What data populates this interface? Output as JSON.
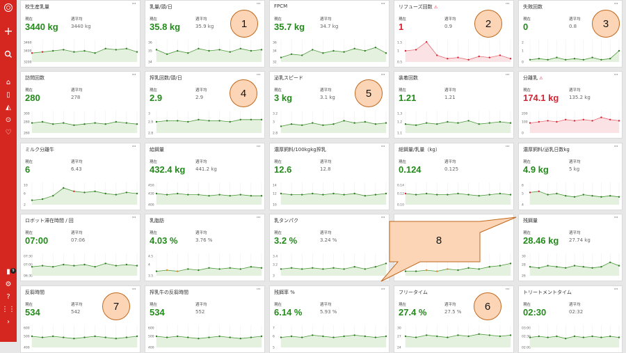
{
  "sidebar": {
    "top_logo": "logo-icon",
    "add_icon": "+",
    "items": [
      {
        "name": "home-icon",
        "glyph": "⌂"
      },
      {
        "name": "robot-icon",
        "glyph": "▯"
      },
      {
        "name": "barn-icon",
        "glyph": "◭"
      },
      {
        "name": "cow-icon",
        "glyph": "⊙"
      },
      {
        "name": "health-icon",
        "glyph": "♡"
      }
    ],
    "bottom": [
      {
        "name": "device-icon",
        "glyph": "▮",
        "badge": "9"
      },
      {
        "name": "settings-icon",
        "glyph": "⚙"
      },
      {
        "name": "help-icon",
        "glyph": "?"
      },
      {
        "name": "apps-icon",
        "glyph": "⋮⋮"
      },
      {
        "name": "expand-icon",
        "glyph": "›"
      }
    ]
  },
  "labels": {
    "current": "現在",
    "average": "週平均",
    "menu": "···"
  },
  "cards": [
    {
      "title": "校生産乳量",
      "current": "3440 kg",
      "avg": "3440 kg",
      "ticks": [
        "3460",
        "3400",
        "3200"
      ],
      "color": "green",
      "values": [
        0.4,
        0.45,
        0.5,
        0.55,
        0.45,
        0.5,
        0.4,
        0.6,
        0.55,
        0.6,
        0.45
      ],
      "red": [
        0,
        1
      ]
    },
    {
      "title": "乳量/頭/日",
      "current": "35.8 kg",
      "avg": "35.9 kg",
      "ticks": [
        "36",
        "35",
        "34"
      ],
      "color": "green",
      "values": [
        0.55,
        0.35,
        0.5,
        0.4,
        0.6,
        0.5,
        0.55,
        0.45,
        0.6,
        0.5,
        0.55
      ]
    },
    {
      "title": "FPCM",
      "current": "35.7 kg",
      "avg": "34.7 kg",
      "ticks": [
        "36",
        "34",
        "32"
      ],
      "color": "green",
      "values": [
        0.2,
        0.35,
        0.3,
        0.55,
        0.4,
        0.5,
        0.45,
        0.6,
        0.5,
        0.65,
        0.4
      ]
    },
    {
      "title": "リフューズ回数",
      "warn": true,
      "current": "1",
      "avg": "0.9",
      "ticks": [
        "1.5",
        "1",
        "0.5"
      ],
      "color": "red",
      "values": [
        0.5,
        0.55,
        0.9,
        0.3,
        0.15,
        0.2,
        0.1,
        0.25,
        0.2,
        0.3,
        0.15
      ]
    },
    {
      "title": "失敗回数",
      "current": "0",
      "avg": "0.8",
      "ticks": [
        "2",
        "1",
        "0"
      ],
      "color": "green",
      "values": [
        0.1,
        0.15,
        0.1,
        0.2,
        0.1,
        0.15,
        0.1,
        0.2,
        0.1,
        0.15,
        0.5
      ]
    },
    {
      "title": "訪問回数",
      "current": "280",
      "avg": "278",
      "ticks": [
        "300",
        "280",
        "260"
      ],
      "color": "green",
      "values": [
        0.45,
        0.5,
        0.4,
        0.45,
        0.35,
        0.4,
        0.45,
        0.4,
        0.5,
        0.45,
        0.4
      ]
    },
    {
      "title": "搾乳回数/頭/日",
      "current": "2.9",
      "avg": "2.9",
      "ticks": [
        "3",
        "2.9",
        "2.8"
      ],
      "color": "green",
      "values": [
        0.5,
        0.55,
        0.55,
        0.5,
        0.6,
        0.55,
        0.55,
        0.5,
        0.6,
        0.6,
        0.6
      ]
    },
    {
      "title": "泌乳スピード",
      "current": "3 kg",
      "avg": "3.1 kg",
      "ticks": [
        "3.2",
        "3",
        "2.8"
      ],
      "color": "green",
      "values": [
        0.3,
        0.4,
        0.35,
        0.45,
        0.35,
        0.4,
        0.55,
        0.45,
        0.5,
        0.4,
        0.45
      ]
    },
    {
      "title": "装着回数",
      "current": "1.21",
      "avg": "1.21",
      "ticks": [
        "1.3",
        "1.2",
        "1.1"
      ],
      "color": "green",
      "values": [
        0.4,
        0.35,
        0.45,
        0.4,
        0.5,
        0.45,
        0.55,
        0.4,
        0.45,
        0.5,
        0.45
      ]
    },
    {
      "title": "分離乳",
      "warn": true,
      "current": "174.1 kg",
      "avg": "135.2 kg",
      "ticks": [
        "200",
        "100",
        "0"
      ],
      "color": "red",
      "values": [
        0.45,
        0.5,
        0.55,
        0.5,
        0.6,
        0.55,
        0.6,
        0.55,
        0.7,
        0.6,
        0.55
      ]
    },
    {
      "title": "ミルク分離牛",
      "current": "6",
      "avg": "6.43",
      "ticks": [
        "10",
        "6",
        "2"
      ],
      "color": "green",
      "values": [
        0.2,
        0.25,
        0.4,
        0.75,
        0.6,
        0.55,
        0.6,
        0.5,
        0.45,
        0.55,
        0.5
      ],
      "red": [
        4
      ]
    },
    {
      "title": "給餌量",
      "current": "432.4 kg",
      "avg": "441.2 kg",
      "ticks": [
        "450",
        "430",
        "400"
      ],
      "color": "green",
      "values": [
        0.5,
        0.45,
        0.5,
        0.45,
        0.45,
        0.4,
        0.45,
        0.4,
        0.45,
        0.4,
        0.4
      ]
    },
    {
      "title": "濃厚飼料/100kgkg搾乳",
      "current": "12.6",
      "avg": "12.8",
      "ticks": [
        "14",
        "12",
        "10"
      ],
      "color": "green",
      "values": [
        0.5,
        0.45,
        0.45,
        0.5,
        0.45,
        0.5,
        0.45,
        0.5,
        0.4,
        0.45,
        0.5
      ]
    },
    {
      "title": "総餌量/乳量（kg）",
      "current": "0.124",
      "avg": "0.125",
      "ticks": [
        "0.14",
        "0.12",
        "0.10"
      ],
      "color": "green",
      "values": [
        0.5,
        0.45,
        0.5,
        0.45,
        0.45,
        0.5,
        0.45,
        0.4,
        0.45,
        0.5,
        0.45
      ],
      "red": [
        0
      ]
    },
    {
      "title": "濃厚飼料/泌乳日数kg",
      "current": "4.9 kg",
      "avg": "5 kg",
      "ticks": [
        "6",
        "5",
        "4"
      ],
      "color": "green",
      "values": [
        0.55,
        0.6,
        0.45,
        0.5,
        0.4,
        0.35,
        0.45,
        0.4,
        0.35,
        0.4,
        0.35
      ],
      "red": [
        0,
        1
      ]
    },
    {
      "title": "ロボット滞在時間 / 回",
      "current": "07:00",
      "avg": "07:06",
      "ticks": [
        "07:30",
        "07:00",
        "06:30"
      ],
      "color": "green",
      "values": [
        0.4,
        0.45,
        0.4,
        0.5,
        0.45,
        0.5,
        0.4,
        0.55,
        0.45,
        0.5,
        0.45
      ]
    },
    {
      "title": "乳脂肪",
      "current": "4.03 %",
      "avg": "3.76 %",
      "ticks": [
        "4.5",
        "4",
        "3.5"
      ],
      "color": "green",
      "values": [
        0.2,
        0.25,
        0.2,
        0.3,
        0.25,
        0.35,
        0.3,
        0.35,
        0.3,
        0.4,
        0.35
      ],
      "orange": [
        1,
        2
      ]
    },
    {
      "title": "乳タンパク",
      "current": "3.2 %",
      "avg": "3.24 %",
      "ticks": [
        "3.4",
        "3.2",
        "3"
      ],
      "color": "green",
      "values": [
        0.3,
        0.35,
        0.3,
        0.35,
        0.3,
        0.35,
        0.3,
        0.4,
        0.3,
        0.4,
        0.55
      ]
    },
    {
      "title": "",
      "current": "",
      "avg": "",
      "ticks": [
        "",
        "",
        ""
      ],
      "color": "green",
      "values": [
        0.2,
        0.2,
        0.25,
        0.2,
        0.3,
        0.25,
        0.35,
        0.3,
        0.4,
        0.45,
        0.55
      ],
      "orange": [
        2,
        3,
        4
      ],
      "hidden_header": true
    },
    {
      "title": "残餌量",
      "current": "28.46 kg",
      "avg": "27.74 kg",
      "ticks": [
        "30",
        "28",
        "26"
      ],
      "color": "green",
      "values": [
        0.4,
        0.35,
        0.45,
        0.4,
        0.35,
        0.45,
        0.4,
        0.35,
        0.4,
        0.6,
        0.45
      ]
    },
    {
      "title": "反芻時間",
      "current": "534",
      "avg": "542",
      "ticks": [
        "600",
        "500",
        "400"
      ],
      "color": "green",
      "values": [
        0.5,
        0.45,
        0.5,
        0.45,
        0.4,
        0.45,
        0.5,
        0.45,
        0.4,
        0.45,
        0.5
      ]
    },
    {
      "title": "搾乳牛の反芻時間",
      "current": "534",
      "avg": "552",
      "ticks": [
        "600",
        "500",
        "400"
      ],
      "color": "green",
      "values": [
        0.5,
        0.45,
        0.5,
        0.45,
        0.4,
        0.45,
        0.5,
        0.45,
        0.4,
        0.45,
        0.5
      ]
    },
    {
      "title": "残餌率 %",
      "current": "6.14 %",
      "avg": "5.93 %",
      "ticks": [
        "7",
        "6",
        "5"
      ],
      "color": "green",
      "values": [
        0.45,
        0.5,
        0.45,
        0.55,
        0.5,
        0.45,
        0.5,
        0.55,
        0.5,
        0.45,
        0.5
      ]
    },
    {
      "title": "フリータイム",
      "current": "27.4 %",
      "avg": "27.5 %",
      "ticks": [
        "30",
        "27",
        "24"
      ],
      "color": "green",
      "values": [
        0.5,
        0.45,
        0.55,
        0.5,
        0.45,
        0.55,
        0.5,
        0.6,
        0.55,
        0.5,
        0.55
      ]
    },
    {
      "title": "トリートメントタイム",
      "current": "02:30",
      "avg": "02:32",
      "ticks": [
        "03:00",
        "02:30",
        "02:00"
      ],
      "color": "green",
      "values": [
        0.45,
        0.5,
        0.45,
        0.5,
        0.4,
        0.5,
        0.45,
        0.5,
        0.45,
        0.5,
        0.45
      ]
    }
  ],
  "annotations": {
    "badges": [
      "1",
      "2",
      "3",
      "4",
      "5",
      "6",
      "7"
    ],
    "callout": "8"
  }
}
